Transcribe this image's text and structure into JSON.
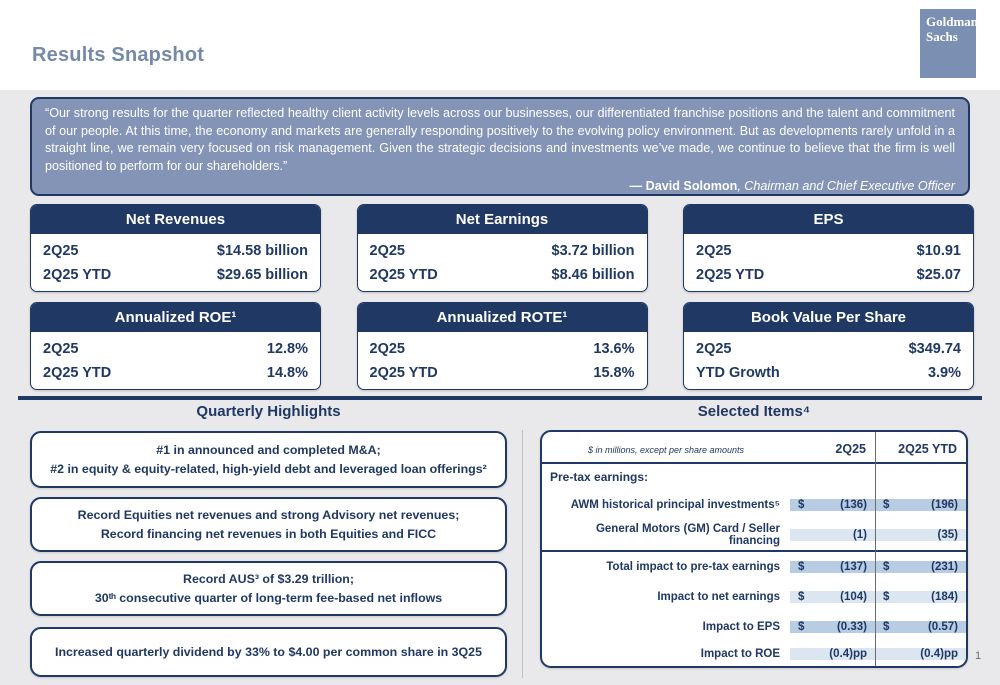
{
  "header": {
    "title": "Results Snapshot",
    "logo_line1": "Goldman",
    "logo_line2": "Sachs"
  },
  "quote": {
    "text": "“Our strong results for the quarter reflected healthy client activity levels across our businesses, our differentiated franchise positions and the talent and commitment of our people. At this time, the economy and markets are generally responding positively to the evolving policy environment. But as developments rarely unfold in a straight line, we remain very focused on risk management. Given the strategic decisions and investments we’ve made, we continue to believe that the firm is well positioned to perform for our shareholders.”",
    "attribution_name": "— David Solomon",
    "attribution_role": ", Chairman and Chief Executive Officer"
  },
  "metric_cards": [
    {
      "title": "Net Revenues",
      "rows": [
        {
          "label": "2Q25",
          "value": "$14.58 billion"
        },
        {
          "label": "2Q25 YTD",
          "value": "$29.65 billion"
        }
      ]
    },
    {
      "title": "Net Earnings",
      "rows": [
        {
          "label": "2Q25",
          "value": "$3.72 billion"
        },
        {
          "label": "2Q25 YTD",
          "value": "$8.46 billion"
        }
      ]
    },
    {
      "title": "EPS",
      "rows": [
        {
          "label": "2Q25",
          "value": "$10.91"
        },
        {
          "label": "2Q25 YTD",
          "value": "$25.07"
        }
      ]
    },
    {
      "title": "Annualized ROE¹",
      "rows": [
        {
          "label": "2Q25",
          "value": "12.8%"
        },
        {
          "label": "2Q25 YTD",
          "value": "14.8%"
        }
      ]
    },
    {
      "title": "Annualized ROTE¹",
      "rows": [
        {
          "label": "2Q25",
          "value": "13.6%"
        },
        {
          "label": "2Q25 YTD",
          "value": "15.8%"
        }
      ]
    },
    {
      "title": "Book Value Per Share",
      "rows": [
        {
          "label": "2Q25",
          "value": "$349.74"
        },
        {
          "label": "YTD Growth",
          "value": "3.9%"
        }
      ]
    }
  ],
  "quarterly_highlights": {
    "title": "Quarterly Highlights",
    "items": [
      {
        "line1": "#1 in announced and completed M&A;",
        "line2": "#2 in equity & equity-related, high-yield debt and leveraged loan offerings²"
      },
      {
        "line1": "Record Equities net revenues and strong Advisory net revenues;",
        "line2": "Record financing net revenues in both Equities and FICC"
      },
      {
        "line1": "Record AUS³ of $3.29 trillion;",
        "line2": "30ᵗʰ consecutive quarter of long-term fee-based net inflows"
      },
      {
        "line1": "Increased quarterly dividend by 33% to $4.00 per common share in 3Q25",
        "line2": ""
      }
    ]
  },
  "selected_items": {
    "title": "Selected Items⁴",
    "table": {
      "note": "$ in millions, except per share amounts",
      "col1_header": "2Q25",
      "col2_header": "2Q25 YTD",
      "section_label": "Pre-tax earnings:",
      "rows": [
        {
          "label": "AWM historical principal investments⁵",
          "d1": "$",
          "v1": "(136)",
          "d2": "$",
          "v2": "(196)"
        },
        {
          "label": "General Motors (GM) Card / Seller financing",
          "d1": "",
          "v1": "(1)",
          "d2": "",
          "v2": "(35)"
        },
        {
          "label": "Total impact to pre-tax earnings",
          "d1": "$",
          "v1": "(137)",
          "d2": "$",
          "v2": "(231)"
        },
        {
          "label": "Impact to net earnings",
          "d1": "$",
          "v1": "(104)",
          "d2": "$",
          "v2": "(184)"
        },
        {
          "label": "Impact to EPS",
          "d1": "$",
          "v1": "(0.33)",
          "d2": "$",
          "v2": "(0.57)"
        },
        {
          "label": "Impact to ROE",
          "d1": "",
          "v1": "(0.4)pp",
          "d2": "",
          "v2": "(0.4)pp"
        }
      ]
    }
  },
  "page_number": "1",
  "colors": {
    "navy": "#1f3864",
    "quote_background": "#8494b6",
    "logo_background": "#7b8fb2",
    "title_text": "#7589a8",
    "cell_medium_blue": "#b8cce4",
    "cell_light_blue": "#dce6f1",
    "page_background": "#e9e9eb"
  }
}
